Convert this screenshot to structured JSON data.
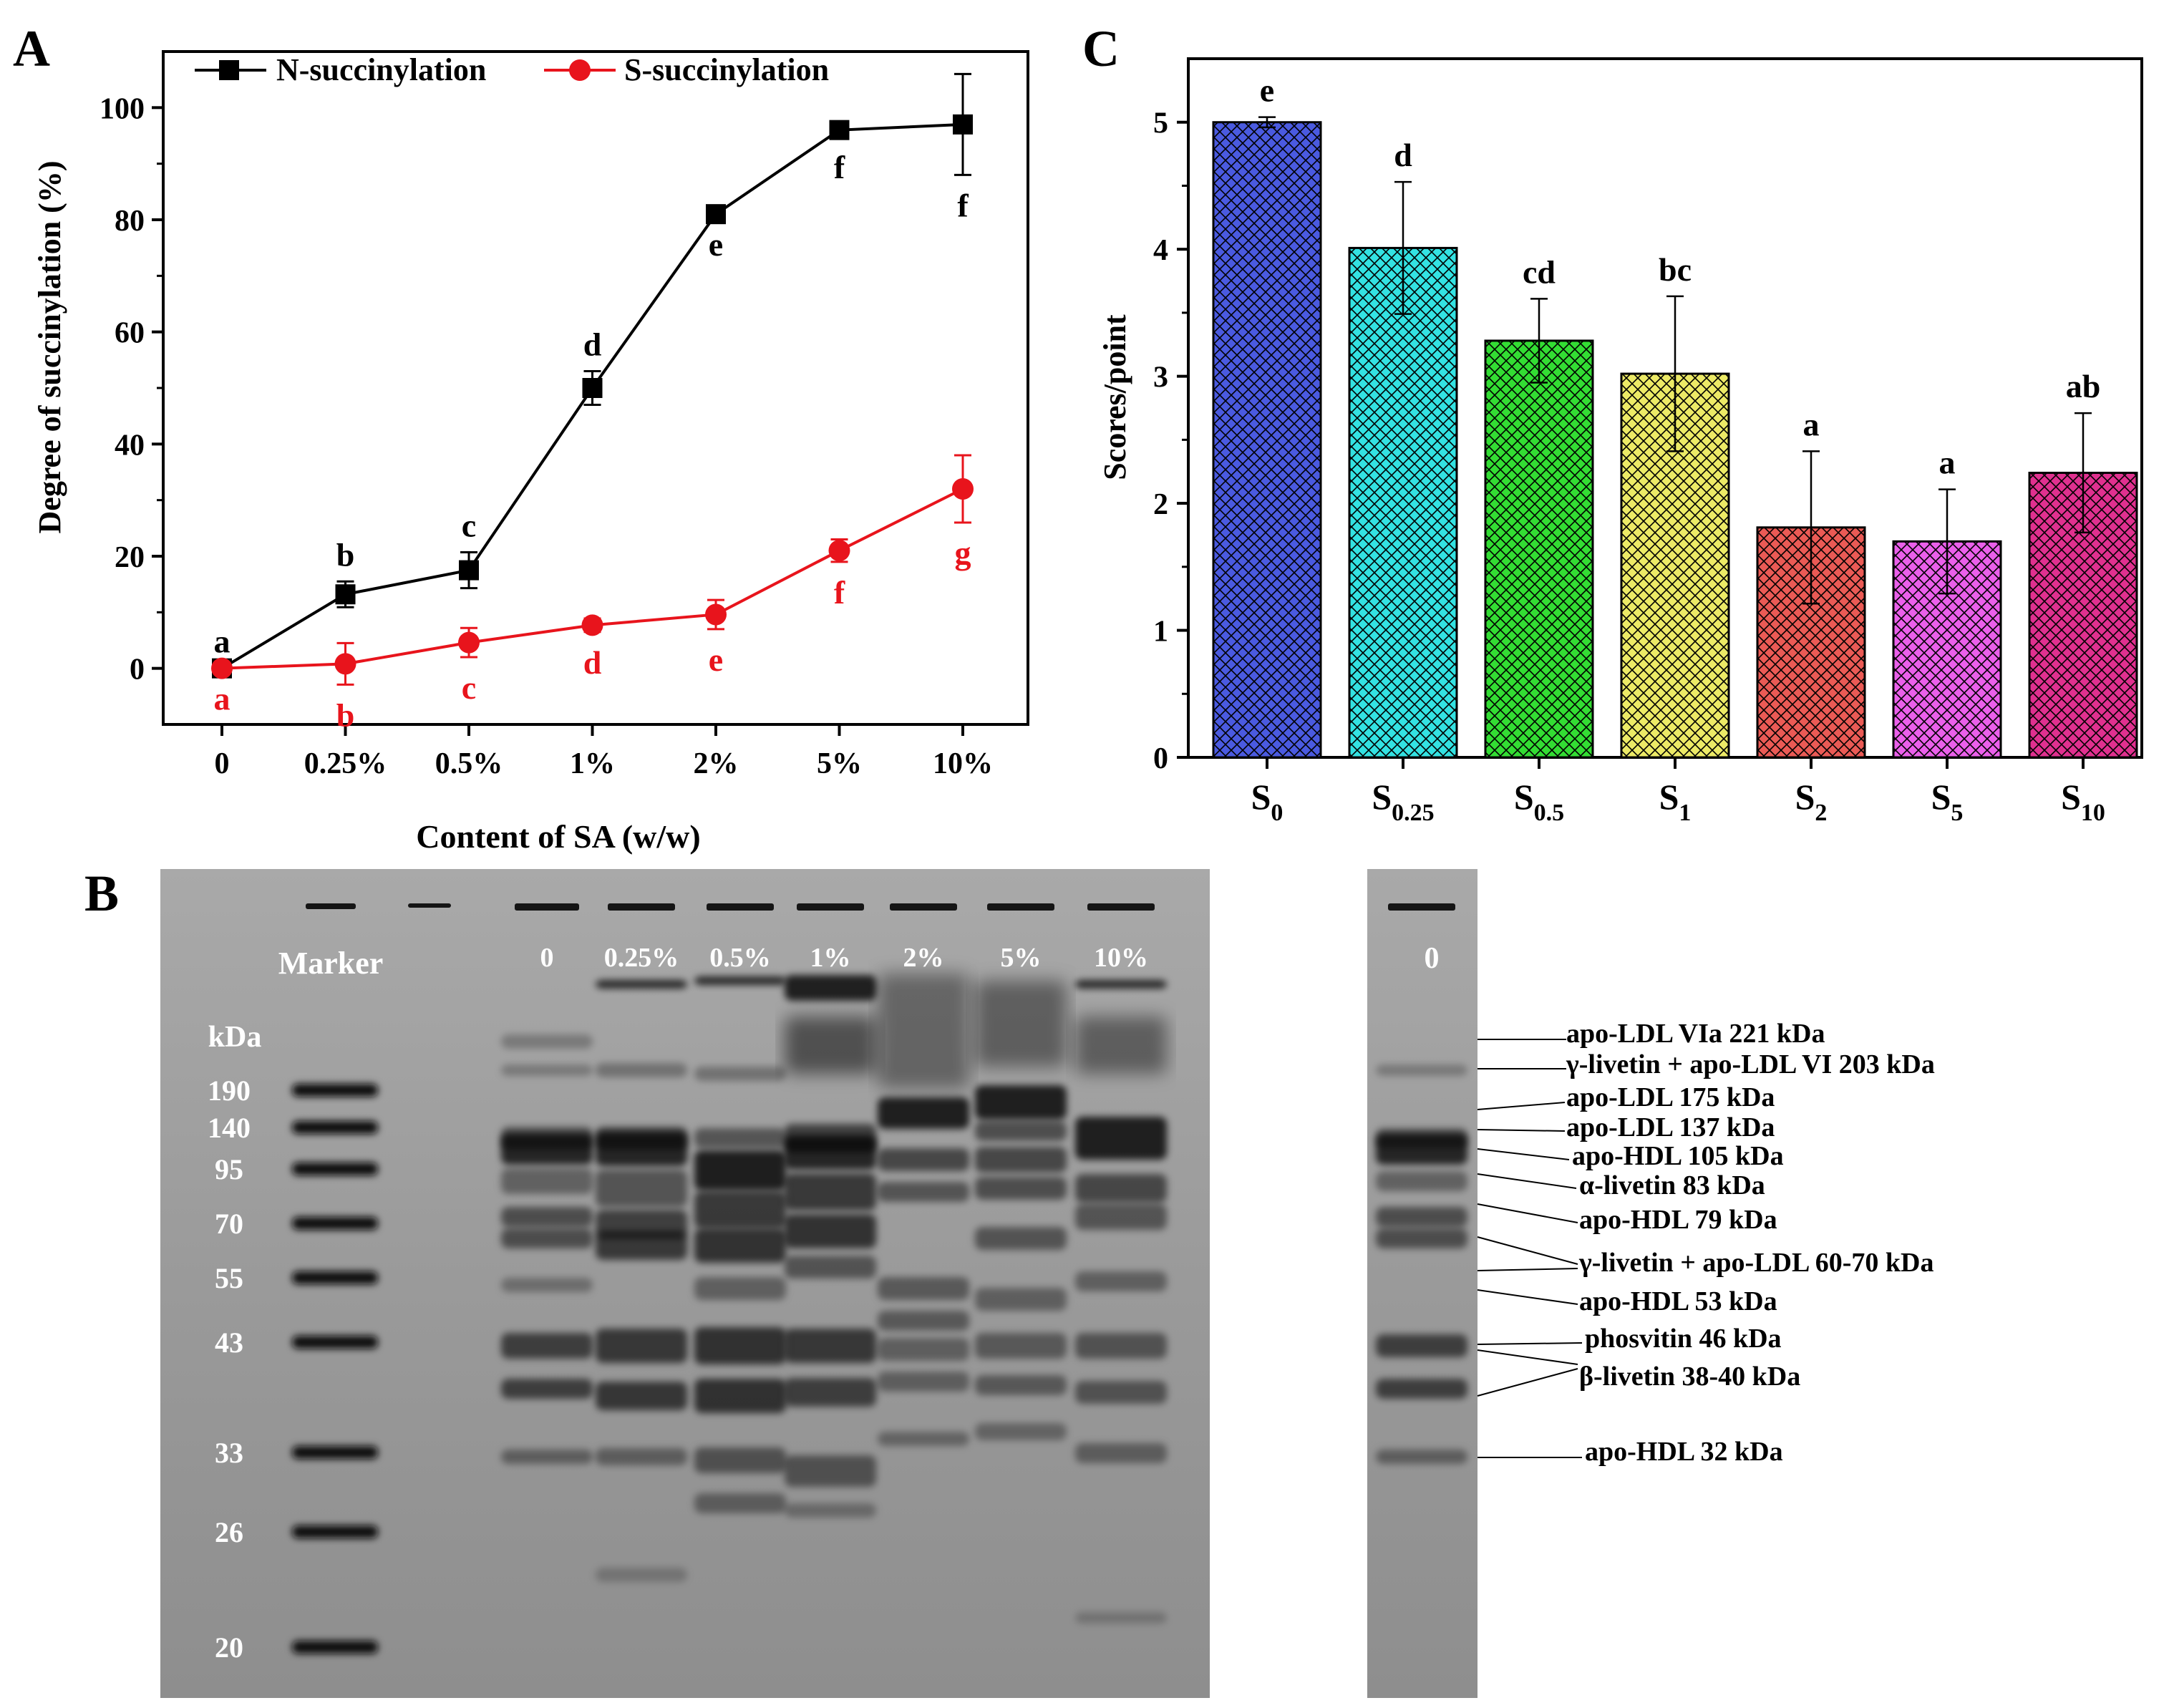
{
  "panels": {
    "a": "A",
    "b": "B",
    "c": "C"
  },
  "chart_data": [
    {
      "type": "line",
      "panel": "A",
      "categories": [
        "0",
        "0.25%",
        "0.5%",
        "1%",
        "2%",
        "5%",
        "10%"
      ],
      "xlabel": "Content of SA (w/w)",
      "ylabel": "Degree of succinylation (%)",
      "ylim": [
        -10,
        110
      ],
      "yticks": [
        0,
        20,
        40,
        60,
        80,
        100
      ],
      "legend_position": "top-left",
      "series": [
        {
          "name": "N-succinylation",
          "color": "#000000",
          "marker": "square",
          "values": [
            0,
            13.2,
            17.5,
            50.0,
            81.0,
            96.0,
            97.0
          ],
          "errors": [
            0,
            2.3,
            3.2,
            3.0,
            0,
            1.2,
            9.0
          ],
          "letters": [
            "a",
            "b",
            "c",
            "d",
            "e",
            "f",
            "f"
          ]
        },
        {
          "name": "S-succinylation",
          "color": "#e8141c",
          "marker": "circle",
          "values": [
            0,
            0.8,
            4.6,
            7.7,
            9.6,
            21.0,
            32.0
          ],
          "errors": [
            0,
            3.7,
            2.6,
            1.2,
            2.6,
            2.0,
            6.0
          ],
          "letters": [
            "a",
            "b",
            "c",
            "d",
            "e",
            "f",
            "g"
          ]
        }
      ]
    },
    {
      "type": "bar",
      "panel": "C",
      "categories": [
        {
          "base": "S",
          "sub": "0"
        },
        {
          "base": "S",
          "sub": "0.25"
        },
        {
          "base": "S",
          "sub": "0.5"
        },
        {
          "base": "S",
          "sub": "1"
        },
        {
          "base": "S",
          "sub": "2"
        },
        {
          "base": "S",
          "sub": "5"
        },
        {
          "base": "S",
          "sub": "10"
        }
      ],
      "values": [
        5.0,
        4.01,
        3.28,
        3.02,
        1.81,
        1.7,
        2.24
      ],
      "errors": [
        0.04,
        0.52,
        0.33,
        0.61,
        0.6,
        0.41,
        0.47
      ],
      "letters": [
        "e",
        "d",
        "cd",
        "bc",
        "a",
        "a",
        "ab"
      ],
      "colors": [
        "#4a5ae0",
        "#33e2e2",
        "#33dd33",
        "#ecea66",
        "#ea5a55",
        "#ea5fea",
        "#e0308f"
      ],
      "ylabel": "Scores/point",
      "ylim": [
        0,
        5.5
      ],
      "yticks": [
        0,
        1,
        2,
        3,
        4,
        5
      ],
      "pattern": "crosshatch"
    }
  ],
  "gel": {
    "marker_label": "Marker",
    "kda_label": "kDa",
    "marker_kda": [
      "190",
      "140",
      "95",
      "70",
      "55",
      "43",
      "33",
      "26",
      "20"
    ],
    "lane_labels": [
      "0",
      "0.25%",
      "0.5%",
      "1%",
      "2%",
      "5%",
      "10%"
    ],
    "right_lane_label": "0",
    "band_annotations": [
      "apo-LDL VIa 221 kDa",
      "γ-livetin + apo-LDL VI 203 kDa",
      "apo-LDL 175 kDa",
      "apo-LDL 137 kDa",
      "apo-HDL 105 kDa",
      "α-livetin 83 kDa",
      "apo-HDL 79 kDa",
      "γ-livetin + apo-LDL 60-70 kDa",
      "apo-HDL 53 kDa",
      "phosvitin 46 kDa",
      "β-livetin 38-40 kDa",
      "apo-HDL 32 kDa"
    ]
  }
}
